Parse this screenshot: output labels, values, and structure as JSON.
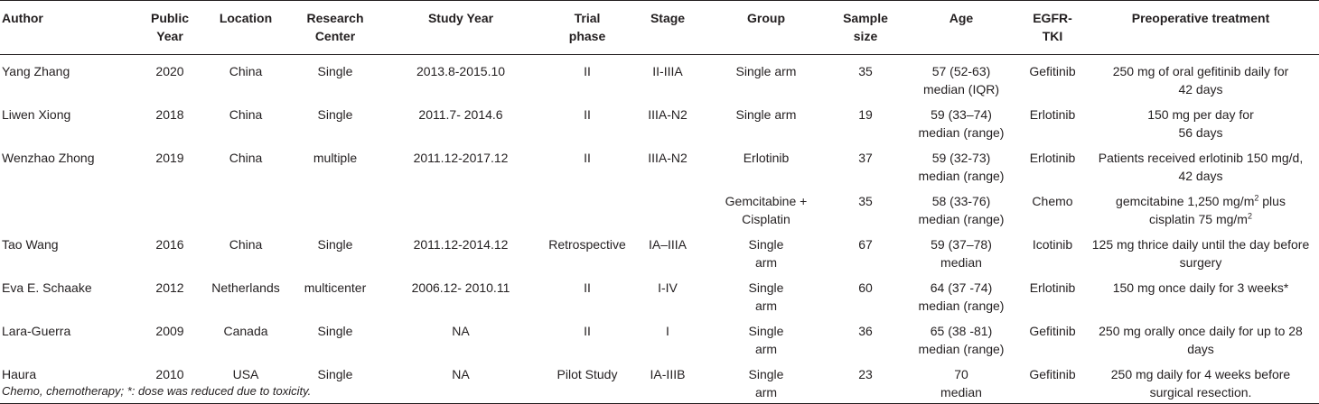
{
  "headers": [
    [
      "Author"
    ],
    [
      "Public",
      "Year"
    ],
    [
      "Location"
    ],
    [
      "Research",
      "Center"
    ],
    [
      "Study Year"
    ],
    [
      "Trial",
      "phase"
    ],
    [
      "Stage"
    ],
    [
      "Group"
    ],
    [
      "Sample",
      "size"
    ],
    [
      "Age"
    ],
    [
      "EGFR-",
      "TKI"
    ],
    [
      "Preoperative treatment"
    ]
  ],
  "rows": [
    {
      "author": "Yang Zhang",
      "year": "2020",
      "location": "China",
      "center": "Single",
      "study_year": "2013.8-2015.10",
      "phase": "II",
      "stage": "II-IIIA",
      "group": [
        "Single arm"
      ],
      "sample": "35",
      "age": [
        "57 (52-63)",
        "median (IQR)"
      ],
      "tki": "Gefitinib",
      "treatment": [
        "250 mg of oral gefitinib daily for",
        "42 days"
      ]
    },
    {
      "author": "Liwen Xiong",
      "year": "2018",
      "location": "China",
      "center": "Single",
      "study_year": "2011.7- 2014.6",
      "phase": "II",
      "stage": "IIIA-N2",
      "group": [
        "Single arm"
      ],
      "sample": "19",
      "age": [
        "59 (33–74)",
        "median (range)"
      ],
      "tki": "Erlotinib",
      "treatment": [
        "150 mg per day for",
        "56 days"
      ]
    },
    {
      "author": "Wenzhao Zhong",
      "year": "2019",
      "location": "China",
      "center": "multiple",
      "study_year": "2011.12-2017.12",
      "phase": "II",
      "stage": "IIIA-N2",
      "group": [
        "Erlotinib"
      ],
      "sample": "37",
      "age": [
        "59 (32-73)",
        "median (range)"
      ],
      "tki": "Erlotinib",
      "treatment": [
        "Patients received erlotinib 150 mg/d,",
        "42 days"
      ]
    },
    {
      "author": "",
      "year": "",
      "location": "",
      "center": "",
      "study_year": "",
      "phase": "",
      "stage": "",
      "group": [
        "Gemcitabine +",
        "Cisplatin"
      ],
      "sample": "35",
      "age": [
        "58 (33-76)",
        "median (range)"
      ],
      "tki": "Chemo",
      "treatment_rich": true,
      "treatment": [
        "gemcitabine 1,250 mg/m",
        "2",
        " plus",
        "cisplatin 75 mg/m",
        "2"
      ]
    },
    {
      "author": "Tao Wang",
      "year": "2016",
      "location": "China",
      "center": "Single",
      "study_year": "2011.12-2014.12",
      "phase": "Retrospective",
      "stage": "IA–IIIA",
      "group": [
        "Single",
        "arm"
      ],
      "sample": "67",
      "age": [
        "59 (37–78)",
        "median"
      ],
      "tki": "Icotinib",
      "treatment": [
        "125 mg thrice daily until the day before",
        "surgery"
      ]
    },
    {
      "author": "Eva E. Schaake",
      "year": "2012",
      "location": "Netherlands",
      "center": "multicenter",
      "study_year": "2006.12- 2010.11",
      "phase": "II",
      "stage": "I-IV",
      "group": [
        "Single",
        "arm"
      ],
      "sample": "60",
      "age": [
        "64 (37 -74)",
        "median (range)"
      ],
      "tki": "Erlotinib",
      "treatment": [
        "150 mg once daily for 3 weeks*"
      ]
    },
    {
      "author": "Lara-Guerra",
      "year": "2009",
      "location": "Canada",
      "center": "Single",
      "study_year": "NA",
      "phase": "II",
      "stage": "I",
      "group": [
        "Single",
        "arm"
      ],
      "sample": "36",
      "age": [
        "65 (38 -81)",
        "median (range)"
      ],
      "tki": "Gefitinib",
      "treatment": [
        "250 mg orally once daily for up to 28",
        "days"
      ]
    },
    {
      "author": "Haura",
      "year": "2010",
      "location": "USA",
      "center": "Single",
      "study_year": "NA",
      "phase": "Pilot Study",
      "stage": "IA-IIIB",
      "group": [
        "Single",
        "arm"
      ],
      "sample": "23",
      "age": [
        "70",
        "median"
      ],
      "tki": "Gefitinib",
      "treatment": [
        "250 mg daily for 4 weeks before",
        "surgical resection."
      ]
    }
  ],
  "footnote": "Chemo, chemotherapy; *: dose was reduced due to toxicity."
}
